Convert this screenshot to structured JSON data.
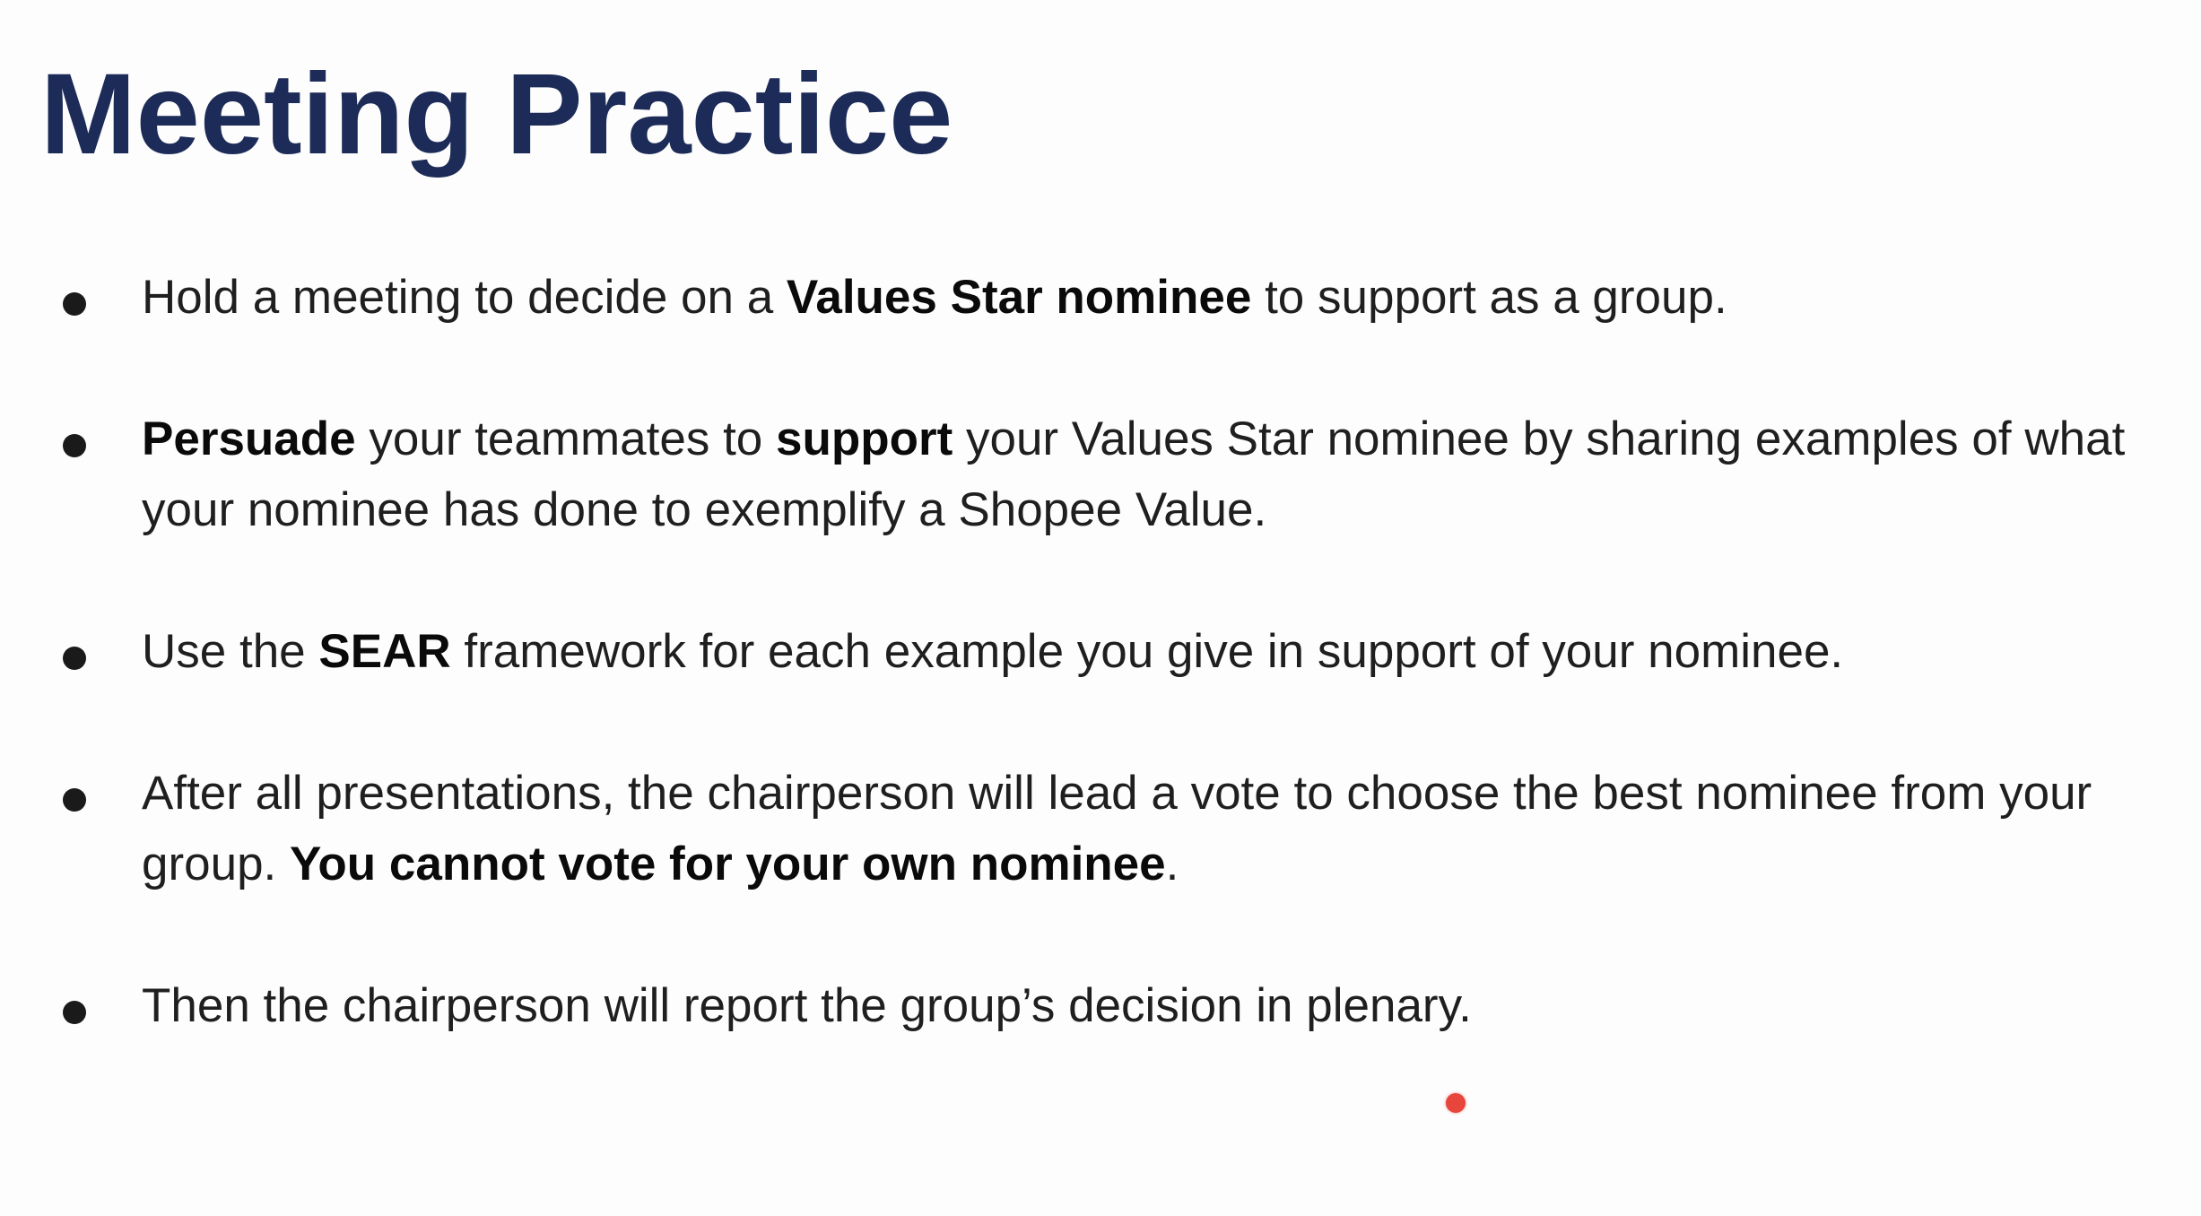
{
  "slide": {
    "title": "Meeting Practice",
    "bullets": [
      {
        "segments": [
          {
            "text": "Hold a meeting to decide on a ",
            "bold": false
          },
          {
            "text": "Values Star nominee",
            "bold": true
          },
          {
            "text": " to support as a group.",
            "bold": false
          }
        ]
      },
      {
        "segments": [
          {
            "text": "Persuade",
            "bold": true
          },
          {
            "text": " your teammates to ",
            "bold": false
          },
          {
            "text": "support",
            "bold": true
          },
          {
            "text": " your Values Star nominee by sharing examples of what your nominee has done to exemplify a Shopee Value.",
            "bold": false
          }
        ]
      },
      {
        "segments": [
          {
            "text": "Use the ",
            "bold": false
          },
          {
            "text": "SEAR",
            "bold": true
          },
          {
            "text": " framework for each example you give in support of your nominee.",
            "bold": false
          }
        ]
      },
      {
        "segments": [
          {
            "text": "After all presentations, the chairperson will lead a vote to choose the best nominee from your group. ",
            "bold": false
          },
          {
            "text": "You cannot vote for your own nominee",
            "bold": true
          },
          {
            "text": ".",
            "bold": false
          }
        ]
      },
      {
        "segments": [
          {
            "text": "Then the chairperson will report the group’s decision in plenary.",
            "bold": false
          }
        ]
      }
    ]
  },
  "colors": {
    "title": "#1c2b57",
    "body_text": "#1f1f1f",
    "laser_pointer": "#e8453c"
  }
}
